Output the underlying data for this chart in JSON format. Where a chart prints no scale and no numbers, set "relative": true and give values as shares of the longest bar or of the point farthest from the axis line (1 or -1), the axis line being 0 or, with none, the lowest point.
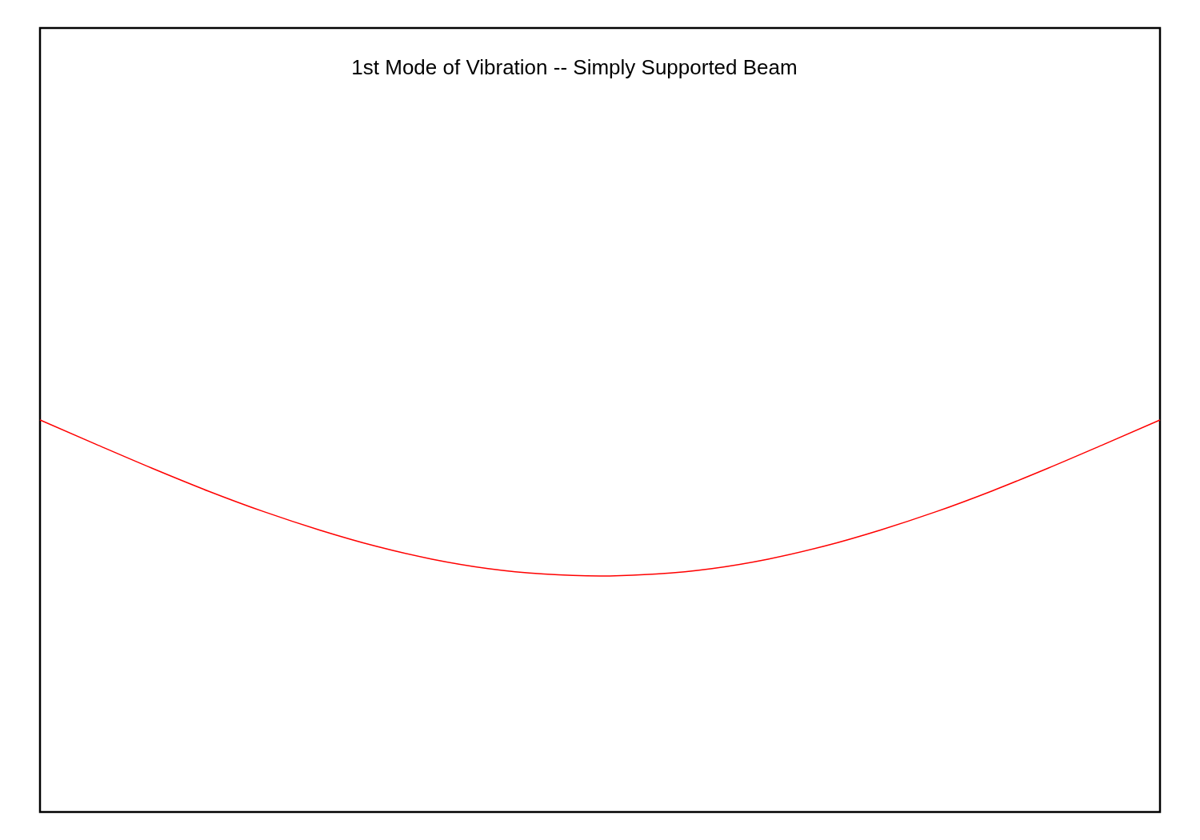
{
  "chart_data": {
    "type": "line",
    "title": "1st Mode of Vibration -- Simply Supported Beam",
    "relative": true,
    "categories": [
      null,
      null,
      null,
      null,
      null,
      null,
      null,
      null,
      null,
      null,
      null,
      null,
      null,
      null,
      null,
      null,
      null,
      null,
      null,
      null,
      null
    ],
    "series": [
      {
        "color": "#ff0000",
        "values": [
          1,
          0.938,
          0.877,
          0.819,
          0.766,
          0.719,
          0.678,
          0.645,
          0.621,
          0.607,
          0.602,
          0.607,
          0.621,
          0.645,
          0.678,
          0.719,
          0.766,
          0.819,
          0.877,
          0.938,
          1
        ]
      }
    ]
  }
}
